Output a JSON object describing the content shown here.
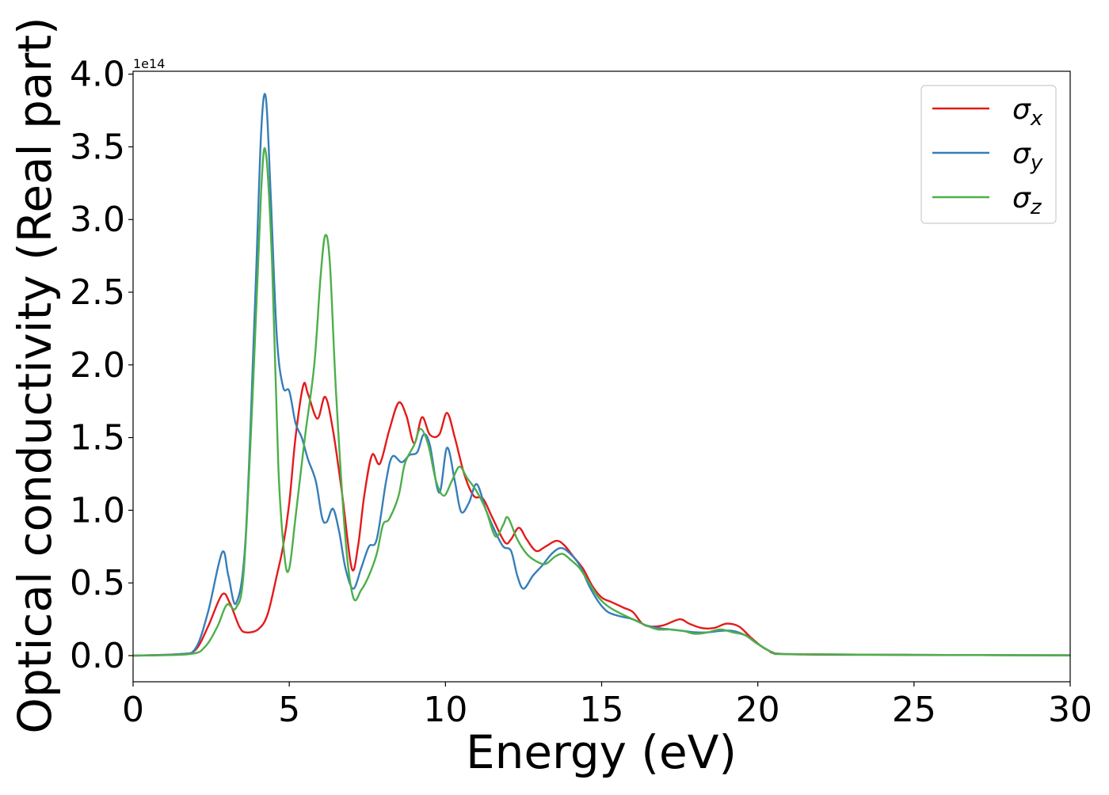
{
  "chart_data": {
    "type": "line",
    "xlabel": "Energy (eV)",
    "ylabel": "Optical conductivity (Real part)",
    "offset_label": "1e14",
    "xlim": [
      0,
      30
    ],
    "ylim": [
      -0.18,
      4.02
    ],
    "x_ticks": [
      0,
      5,
      10,
      15,
      20,
      25,
      30
    ],
    "x_tick_labels": [
      "0",
      "5",
      "10",
      "15",
      "20",
      "25",
      "30"
    ],
    "y_ticks": [
      0.0,
      0.5,
      1.0,
      1.5,
      2.0,
      2.5,
      3.0,
      3.5,
      4.0
    ],
    "y_tick_labels": [
      "0.0",
      "0.5",
      "1.0",
      "1.5",
      "2.0",
      "2.5",
      "3.0",
      "3.5",
      "4.0"
    ],
    "grid": false,
    "legend_position": "top-right",
    "series": [
      {
        "name": "σx",
        "symbol": "σ",
        "subscript": "x",
        "color": "#e41a1c",
        "points": [
          [
            0,
            0
          ],
          [
            1.5,
            0.01
          ],
          [
            2.0,
            0.04
          ],
          [
            2.4,
            0.2
          ],
          [
            2.85,
            0.42
          ],
          [
            3.1,
            0.36
          ],
          [
            3.4,
            0.2
          ],
          [
            3.6,
            0.16
          ],
          [
            4.0,
            0.18
          ],
          [
            4.3,
            0.28
          ],
          [
            4.6,
            0.55
          ],
          [
            4.8,
            0.75
          ],
          [
            5.0,
            1.05
          ],
          [
            5.2,
            1.5
          ],
          [
            5.45,
            1.86
          ],
          [
            5.6,
            1.8
          ],
          [
            5.9,
            1.63
          ],
          [
            6.15,
            1.78
          ],
          [
            6.4,
            1.55
          ],
          [
            6.7,
            1.1
          ],
          [
            7.0,
            0.6
          ],
          [
            7.2,
            0.75
          ],
          [
            7.4,
            1.1
          ],
          [
            7.65,
            1.38
          ],
          [
            7.9,
            1.32
          ],
          [
            8.2,
            1.55
          ],
          [
            8.5,
            1.74
          ],
          [
            8.75,
            1.65
          ],
          [
            9.0,
            1.46
          ],
          [
            9.25,
            1.64
          ],
          [
            9.5,
            1.52
          ],
          [
            9.8,
            1.52
          ],
          [
            10.05,
            1.67
          ],
          [
            10.3,
            1.5
          ],
          [
            10.6,
            1.25
          ],
          [
            10.9,
            1.1
          ],
          [
            11.2,
            1.08
          ],
          [
            11.5,
            0.95
          ],
          [
            11.9,
            0.78
          ],
          [
            12.1,
            0.8
          ],
          [
            12.35,
            0.88
          ],
          [
            12.6,
            0.8
          ],
          [
            12.9,
            0.72
          ],
          [
            13.2,
            0.75
          ],
          [
            13.55,
            0.79
          ],
          [
            13.8,
            0.76
          ],
          [
            14.1,
            0.68
          ],
          [
            14.4,
            0.6
          ],
          [
            14.7,
            0.48
          ],
          [
            15.0,
            0.4
          ],
          [
            15.3,
            0.37
          ],
          [
            15.7,
            0.33
          ],
          [
            16.0,
            0.3
          ],
          [
            16.3,
            0.22
          ],
          [
            16.6,
            0.2
          ],
          [
            17.0,
            0.21
          ],
          [
            17.5,
            0.25
          ],
          [
            17.8,
            0.22
          ],
          [
            18.2,
            0.19
          ],
          [
            18.6,
            0.19
          ],
          [
            19.0,
            0.22
          ],
          [
            19.4,
            0.2
          ],
          [
            19.8,
            0.12
          ],
          [
            20.3,
            0.04
          ],
          [
            21.0,
            0.01
          ],
          [
            25,
            0.005
          ],
          [
            30,
            0.002
          ]
        ]
      },
      {
        "name": "σy",
        "symbol": "σ",
        "subscript": "y",
        "color": "#377eb8",
        "points": [
          [
            0,
            0
          ],
          [
            1.5,
            0.01
          ],
          [
            2.0,
            0.05
          ],
          [
            2.4,
            0.3
          ],
          [
            2.85,
            0.71
          ],
          [
            3.05,
            0.55
          ],
          [
            3.3,
            0.36
          ],
          [
            3.6,
            0.8
          ],
          [
            3.9,
            2.4
          ],
          [
            4.1,
            3.6
          ],
          [
            4.25,
            3.84
          ],
          [
            4.4,
            3.2
          ],
          [
            4.6,
            2.2
          ],
          [
            4.8,
            1.85
          ],
          [
            5.0,
            1.82
          ],
          [
            5.2,
            1.6
          ],
          [
            5.4,
            1.5
          ],
          [
            5.6,
            1.35
          ],
          [
            5.85,
            1.2
          ],
          [
            6.05,
            0.95
          ],
          [
            6.2,
            0.92
          ],
          [
            6.4,
            1.01
          ],
          [
            6.6,
            0.85
          ],
          [
            6.8,
            0.6
          ],
          [
            7.05,
            0.46
          ],
          [
            7.3,
            0.6
          ],
          [
            7.55,
            0.75
          ],
          [
            7.8,
            0.8
          ],
          [
            8.1,
            1.2
          ],
          [
            8.3,
            1.37
          ],
          [
            8.6,
            1.33
          ],
          [
            8.85,
            1.38
          ],
          [
            9.1,
            1.4
          ],
          [
            9.3,
            1.52
          ],
          [
            9.5,
            1.45
          ],
          [
            9.8,
            1.12
          ],
          [
            10.05,
            1.43
          ],
          [
            10.3,
            1.2
          ],
          [
            10.5,
            0.99
          ],
          [
            10.75,
            1.05
          ],
          [
            11.0,
            1.18
          ],
          [
            11.3,
            1.0
          ],
          [
            11.6,
            0.85
          ],
          [
            11.85,
            0.75
          ],
          [
            12.1,
            0.72
          ],
          [
            12.3,
            0.55
          ],
          [
            12.5,
            0.46
          ],
          [
            12.8,
            0.55
          ],
          [
            13.1,
            0.62
          ],
          [
            13.4,
            0.7
          ],
          [
            13.7,
            0.74
          ],
          [
            14.0,
            0.7
          ],
          [
            14.3,
            0.62
          ],
          [
            14.6,
            0.48
          ],
          [
            14.9,
            0.37
          ],
          [
            15.2,
            0.3
          ],
          [
            15.6,
            0.27
          ],
          [
            16.0,
            0.25
          ],
          [
            16.4,
            0.21
          ],
          [
            16.8,
            0.19
          ],
          [
            17.2,
            0.18
          ],
          [
            17.6,
            0.17
          ],
          [
            18.0,
            0.16
          ],
          [
            18.4,
            0.16
          ],
          [
            18.8,
            0.17
          ],
          [
            19.2,
            0.17
          ],
          [
            19.6,
            0.14
          ],
          [
            20.0,
            0.08
          ],
          [
            20.5,
            0.02
          ],
          [
            21.0,
            0.01
          ],
          [
            25,
            0.005
          ],
          [
            30,
            0.002
          ]
        ]
      },
      {
        "name": "σz",
        "symbol": "σ",
        "subscript": "z",
        "color": "#4daf4a",
        "points": [
          [
            0,
            0
          ],
          [
            1.8,
            0.01
          ],
          [
            2.3,
            0.06
          ],
          [
            2.7,
            0.2
          ],
          [
            3.0,
            0.35
          ],
          [
            3.3,
            0.33
          ],
          [
            3.55,
            0.6
          ],
          [
            3.85,
            1.9
          ],
          [
            4.1,
            3.2
          ],
          [
            4.25,
            3.46
          ],
          [
            4.45,
            2.7
          ],
          [
            4.65,
            1.3
          ],
          [
            4.85,
            0.68
          ],
          [
            5.0,
            0.6
          ],
          [
            5.2,
            0.95
          ],
          [
            5.5,
            1.5
          ],
          [
            5.8,
            2.0
          ],
          [
            6.0,
            2.6
          ],
          [
            6.15,
            2.89
          ],
          [
            6.3,
            2.7
          ],
          [
            6.5,
            1.8
          ],
          [
            6.8,
            0.8
          ],
          [
            7.05,
            0.4
          ],
          [
            7.3,
            0.45
          ],
          [
            7.55,
            0.55
          ],
          [
            7.8,
            0.7
          ],
          [
            8.0,
            0.9
          ],
          [
            8.2,
            0.94
          ],
          [
            8.5,
            1.1
          ],
          [
            8.7,
            1.32
          ],
          [
            9.0,
            1.45
          ],
          [
            9.2,
            1.56
          ],
          [
            9.45,
            1.45
          ],
          [
            9.7,
            1.2
          ],
          [
            9.95,
            1.1
          ],
          [
            10.2,
            1.2
          ],
          [
            10.45,
            1.3
          ],
          [
            10.7,
            1.22
          ],
          [
            11.0,
            1.13
          ],
          [
            11.3,
            1.0
          ],
          [
            11.6,
            0.82
          ],
          [
            11.85,
            0.9
          ],
          [
            12.0,
            0.95
          ],
          [
            12.3,
            0.8
          ],
          [
            12.6,
            0.7
          ],
          [
            12.9,
            0.65
          ],
          [
            13.2,
            0.63
          ],
          [
            13.5,
            0.68
          ],
          [
            13.75,
            0.7
          ],
          [
            14.0,
            0.66
          ],
          [
            14.3,
            0.6
          ],
          [
            14.6,
            0.5
          ],
          [
            14.9,
            0.4
          ],
          [
            15.2,
            0.34
          ],
          [
            15.6,
            0.29
          ],
          [
            16.0,
            0.25
          ],
          [
            16.4,
            0.21
          ],
          [
            16.8,
            0.18
          ],
          [
            17.2,
            0.18
          ],
          [
            17.6,
            0.17
          ],
          [
            18.0,
            0.15
          ],
          [
            18.4,
            0.16
          ],
          [
            18.8,
            0.18
          ],
          [
            19.2,
            0.16
          ],
          [
            19.6,
            0.14
          ],
          [
            20.0,
            0.08
          ],
          [
            20.5,
            0.02
          ],
          [
            21.0,
            0.01
          ],
          [
            25,
            0.005
          ],
          [
            30,
            0.002
          ]
        ]
      }
    ]
  }
}
